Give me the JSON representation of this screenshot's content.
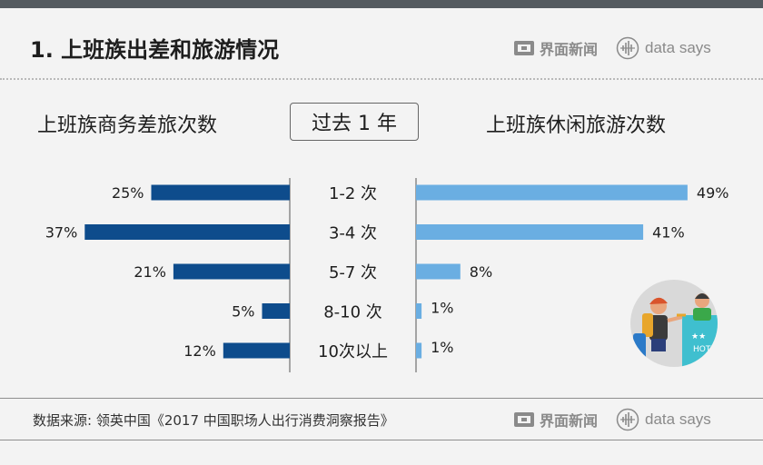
{
  "header": {
    "title": "1. 上班族出差和旅游情况"
  },
  "brand": {
    "jiemian": "界面新闻",
    "datasays": "data says"
  },
  "period": "过去 1 年",
  "footer": {
    "source": "数据来源: 领英中国《2017 中国职场人出行消费洞察报告》"
  },
  "colors": {
    "business": "#0e4c8c",
    "leisure": "#6aaee2",
    "text": "#1e1e1e"
  },
  "chart_data": {
    "type": "bar",
    "orientation": "horizontal-butterfly",
    "categories": [
      "1-2 次",
      "3-4 次",
      "5-7 次",
      "8-10 次",
      "10次以上"
    ],
    "series": [
      {
        "name": "上班族商务差旅次数",
        "side": "left",
        "values": [
          25,
          37,
          21,
          5,
          12
        ],
        "labels": [
          "25%",
          "37%",
          "21%",
          "5%",
          "12%"
        ]
      },
      {
        "name": "上班族休闲旅游次数",
        "side": "right",
        "values": [
          49,
          41,
          8,
          1,
          1
        ],
        "labels": [
          "49%",
          "41%",
          "8%",
          "1%",
          "1%"
        ]
      }
    ],
    "unit": "%"
  }
}
